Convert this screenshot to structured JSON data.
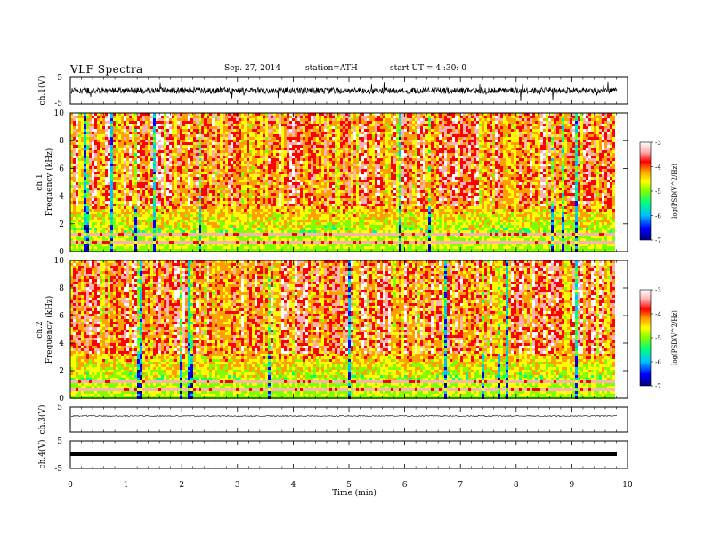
{
  "header": {
    "title": "VLF  Spectra",
    "date": "Sep. 27, 2014",
    "station": "station=ATH",
    "start": "start  UT  =   4  :30: 0"
  },
  "chart_data": [
    {
      "type": "line",
      "ylabel": "ch.1(V)",
      "ylim": [
        -5,
        5
      ],
      "yticks": [
        "5",
        "-5"
      ],
      "description_series": "noisy waveform centered near 0 V"
    },
    {
      "type": "heatmap",
      "ylabel": "ch.1\nFrequency  (kHz)",
      "ylabel_lines": [
        "ch.1",
        "Frequency  (kHz)"
      ],
      "ylim": [
        0,
        10
      ],
      "yticks": [
        "0",
        "2",
        "4",
        "6",
        "8",
        "10"
      ],
      "colorbar": {
        "label": "log(PSD(V^2/Hz)",
        "range": [
          -7,
          -3
        ],
        "ticks": [
          "-3",
          "-4",
          "-5",
          "-6",
          "-7"
        ],
        "colors": [
          "#000080",
          "#0000ff",
          "#00c0ff",
          "#00ff80",
          "#80ff00",
          "#ffff00",
          "#ffa000",
          "#ff0000",
          "#ffb0b0",
          "#ffffff"
        ]
      }
    },
    {
      "type": "heatmap",
      "ylabel": "ch.2\nFrequency  (kHz)",
      "ylabel_lines": [
        "ch.2",
        "Frequency  (kHz)"
      ],
      "ylim": [
        0,
        10
      ],
      "yticks": [
        "0",
        "2",
        "4",
        "6",
        "8",
        "10"
      ],
      "colorbar": {
        "label": "log(PSD(V^2/Hz)",
        "range": [
          -7,
          -3
        ],
        "ticks": [
          "-3",
          "-4",
          "-5",
          "-6",
          "-7"
        ]
      }
    },
    {
      "type": "line",
      "ylabel": "ch.3(V)",
      "ylim": [
        -5,
        5
      ],
      "yticks": [
        "5"
      ],
      "description_series": "flat trace near 0 V"
    },
    {
      "type": "line",
      "ylabel": "ch.4(V)",
      "ylim": [
        -5,
        5
      ],
      "yticks": [
        "5",
        "-5"
      ],
      "description_series": "thick flat trace near 0 V"
    }
  ],
  "xaxis": {
    "label": "Time  (min)",
    "range": [
      0,
      10
    ],
    "ticks": [
      "0",
      "1",
      "2",
      "3",
      "4",
      "5",
      "6",
      "7",
      "8",
      "9",
      "10"
    ]
  },
  "colors": {
    "axis": "#000000",
    "trace": "#000000"
  }
}
